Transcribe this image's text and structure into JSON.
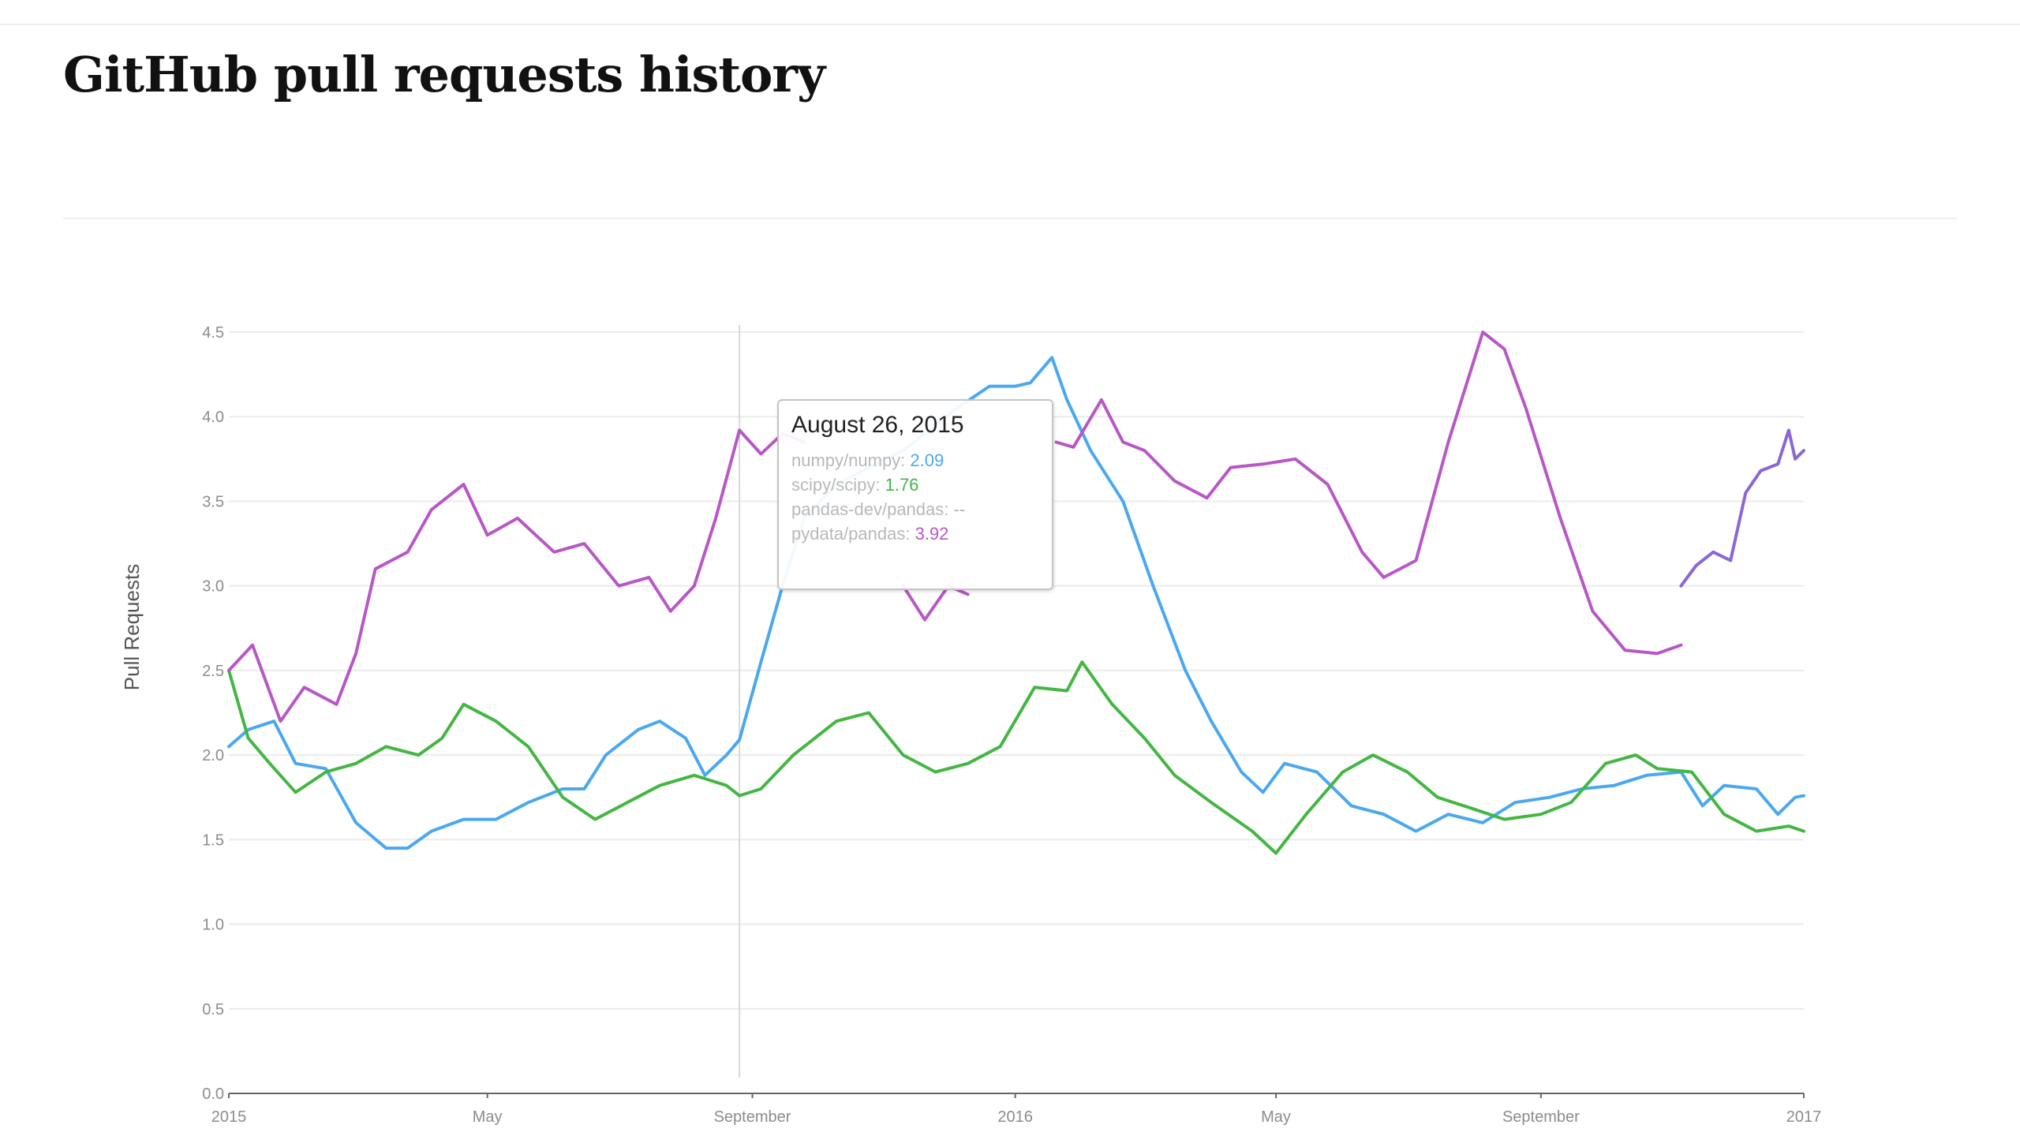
{
  "page": {
    "title": "GitHub pull requests history"
  },
  "tooltip": {
    "date": "August 26, 2015",
    "rows": [
      {
        "label": "numpy/numpy:",
        "value": "2.09",
        "color": "#4aa8f0"
      },
      {
        "label": "scipy/scipy:",
        "value": "1.76",
        "color": "#43b643"
      },
      {
        "label": "pandas-dev/pandas:",
        "value": "--",
        "color": "#b0b0b0"
      },
      {
        "label": "pydata/pandas:",
        "value": "3.92",
        "color": "#b857c6"
      }
    ]
  },
  "chart_data": {
    "type": "line",
    "title": "",
    "xlabel": "",
    "ylabel": "Pull Requests",
    "xlim": [
      "2015-01-01",
      "2017-01-01"
    ],
    "ylim": [
      0,
      4.5
    ],
    "yticks": [
      "0.0",
      "0.5",
      "1.0",
      "1.5",
      "2.0",
      "2.5",
      "3.0",
      "3.5",
      "4.0",
      "4.5"
    ],
    "xticks": [
      {
        "date": "2015-01-01",
        "label": "2015"
      },
      {
        "date": "2015-05-01",
        "label": "May"
      },
      {
        "date": "2015-09-01",
        "label": "September"
      },
      {
        "date": "2016-01-01",
        "label": "2016"
      },
      {
        "date": "2016-05-01",
        "label": "May"
      },
      {
        "date": "2016-09-01",
        "label": "September"
      },
      {
        "date": "2017-01-01",
        "label": "2017"
      }
    ],
    "grid": true,
    "legend": "none",
    "hover_date": "2015-08-26",
    "series": [
      {
        "name": "numpy/numpy",
        "color": "#4aa8f0",
        "points": [
          [
            "2015-01-01",
            2.05
          ],
          [
            "2015-01-10",
            2.15
          ],
          [
            "2015-01-22",
            2.2
          ],
          [
            "2015-02-01",
            1.95
          ],
          [
            "2015-02-15",
            1.92
          ],
          [
            "2015-03-01",
            1.6
          ],
          [
            "2015-03-15",
            1.45
          ],
          [
            "2015-03-25",
            1.45
          ],
          [
            "2015-04-05",
            1.55
          ],
          [
            "2015-04-20",
            1.62
          ],
          [
            "2015-05-05",
            1.62
          ],
          [
            "2015-05-20",
            1.72
          ],
          [
            "2015-06-05",
            1.8
          ],
          [
            "2015-06-15",
            1.8
          ],
          [
            "2015-06-25",
            2.0
          ],
          [
            "2015-07-10",
            2.15
          ],
          [
            "2015-07-20",
            2.2
          ],
          [
            "2015-08-01",
            2.1
          ],
          [
            "2015-08-10",
            1.88
          ],
          [
            "2015-08-20",
            2.0
          ],
          [
            "2015-08-26",
            2.09
          ],
          [
            "2015-09-05",
            2.55
          ],
          [
            "2015-09-15",
            3.0
          ],
          [
            "2015-09-25",
            3.4
          ],
          [
            "2015-10-10",
            3.6
          ],
          [
            "2015-10-25",
            3.7
          ],
          [
            "2015-11-10",
            3.8
          ],
          [
            "2015-11-20",
            3.9
          ],
          [
            "2015-12-05",
            4.05
          ],
          [
            "2015-12-20",
            4.18
          ],
          [
            "2016-01-01",
            4.18
          ],
          [
            "2016-01-08",
            4.2
          ],
          [
            "2016-01-18",
            4.35
          ],
          [
            "2016-01-25",
            4.1
          ],
          [
            "2016-02-05",
            3.8
          ],
          [
            "2016-02-20",
            3.5
          ],
          [
            "2016-03-05",
            3.0
          ],
          [
            "2016-03-20",
            2.5
          ],
          [
            "2016-04-01",
            2.2
          ],
          [
            "2016-04-15",
            1.9
          ],
          [
            "2016-04-25",
            1.78
          ],
          [
            "2016-05-05",
            1.95
          ],
          [
            "2016-05-20",
            1.9
          ],
          [
            "2016-06-05",
            1.7
          ],
          [
            "2016-06-20",
            1.65
          ],
          [
            "2016-07-05",
            1.55
          ],
          [
            "2016-07-20",
            1.65
          ],
          [
            "2016-08-05",
            1.6
          ],
          [
            "2016-08-20",
            1.72
          ],
          [
            "2016-09-05",
            1.75
          ],
          [
            "2016-09-20",
            1.8
          ],
          [
            "2016-10-05",
            1.82
          ],
          [
            "2016-10-20",
            1.88
          ],
          [
            "2016-11-05",
            1.9
          ],
          [
            "2016-11-15",
            1.7
          ],
          [
            "2016-11-25",
            1.82
          ],
          [
            "2016-12-10",
            1.8
          ],
          [
            "2016-12-20",
            1.65
          ],
          [
            "2016-12-28",
            1.75
          ],
          [
            "2017-01-01",
            1.76
          ]
        ]
      },
      {
        "name": "scipy/scipy",
        "color": "#43b643",
        "points": [
          [
            "2015-01-01",
            2.5
          ],
          [
            "2015-01-10",
            2.1
          ],
          [
            "2015-01-20",
            1.95
          ],
          [
            "2015-02-01",
            1.78
          ],
          [
            "2015-02-15",
            1.9
          ],
          [
            "2015-03-01",
            1.95
          ],
          [
            "2015-03-15",
            2.05
          ],
          [
            "2015-03-30",
            2.0
          ],
          [
            "2015-04-10",
            2.1
          ],
          [
            "2015-04-20",
            2.3
          ],
          [
            "2015-05-05",
            2.2
          ],
          [
            "2015-05-20",
            2.05
          ],
          [
            "2015-06-05",
            1.75
          ],
          [
            "2015-06-20",
            1.62
          ],
          [
            "2015-07-05",
            1.72
          ],
          [
            "2015-07-20",
            1.82
          ],
          [
            "2015-08-05",
            1.88
          ],
          [
            "2015-08-20",
            1.82
          ],
          [
            "2015-08-26",
            1.76
          ],
          [
            "2015-09-05",
            1.8
          ],
          [
            "2015-09-20",
            2.0
          ],
          [
            "2015-10-10",
            2.2
          ],
          [
            "2015-10-25",
            2.25
          ],
          [
            "2015-11-10",
            2.0
          ],
          [
            "2015-11-25",
            1.9
          ],
          [
            "2015-12-10",
            1.95
          ],
          [
            "2015-12-25",
            2.05
          ],
          [
            "2016-01-10",
            2.4
          ],
          [
            "2016-01-25",
            2.38
          ],
          [
            "2016-02-01",
            2.55
          ],
          [
            "2016-02-15",
            2.3
          ],
          [
            "2016-03-01",
            2.1
          ],
          [
            "2016-03-15",
            1.88
          ],
          [
            "2016-04-01",
            1.72
          ],
          [
            "2016-04-20",
            1.55
          ],
          [
            "2016-05-01",
            1.42
          ],
          [
            "2016-05-15",
            1.65
          ],
          [
            "2016-06-01",
            1.9
          ],
          [
            "2016-06-15",
            2.0
          ],
          [
            "2016-07-01",
            1.9
          ],
          [
            "2016-07-15",
            1.75
          ],
          [
            "2016-08-01",
            1.68
          ],
          [
            "2016-08-15",
            1.62
          ],
          [
            "2016-09-01",
            1.65
          ],
          [
            "2016-09-15",
            1.72
          ],
          [
            "2016-10-01",
            1.95
          ],
          [
            "2016-10-15",
            2.0
          ],
          [
            "2016-10-25",
            1.92
          ],
          [
            "2016-11-10",
            1.9
          ],
          [
            "2016-11-25",
            1.65
          ],
          [
            "2016-12-10",
            1.55
          ],
          [
            "2016-12-25",
            1.58
          ],
          [
            "2017-01-01",
            1.55
          ]
        ]
      },
      {
        "name": "pydata/pandas",
        "color": "#b857c6",
        "points": [
          [
            "2015-01-01",
            2.5
          ],
          [
            "2015-01-12",
            2.65
          ],
          [
            "2015-01-25",
            2.2
          ],
          [
            "2015-02-05",
            2.4
          ],
          [
            "2015-02-20",
            2.3
          ],
          [
            "2015-03-01",
            2.6
          ],
          [
            "2015-03-10",
            3.1
          ],
          [
            "2015-03-25",
            3.2
          ],
          [
            "2015-04-05",
            3.45
          ],
          [
            "2015-04-20",
            3.6
          ],
          [
            "2015-05-01",
            3.3
          ],
          [
            "2015-05-15",
            3.4
          ],
          [
            "2015-06-01",
            3.2
          ],
          [
            "2015-06-15",
            3.25
          ],
          [
            "2015-07-01",
            3.0
          ],
          [
            "2015-07-15",
            3.05
          ],
          [
            "2015-07-25",
            2.85
          ],
          [
            "2015-08-05",
            3.0
          ],
          [
            "2015-08-15",
            3.4
          ],
          [
            "2015-08-26",
            3.92
          ],
          [
            "2015-09-05",
            3.78
          ],
          [
            "2015-09-15",
            3.9
          ],
          [
            "2015-09-25",
            3.85
          ]
        ]
      },
      {
        "name": "pydata/pandas",
        "color": "#b857c6",
        "points": [
          [
            "2015-11-10",
            3.0
          ],
          [
            "2015-11-20",
            2.8
          ],
          [
            "2015-12-01",
            3.0
          ],
          [
            "2015-12-10",
            2.95
          ]
        ]
      },
      {
        "name": "pydata/pandas",
        "color": "#b857c6",
        "points": [
          [
            "2016-01-20",
            3.85
          ],
          [
            "2016-01-28",
            3.82
          ],
          [
            "2016-02-10",
            4.1
          ],
          [
            "2016-02-20",
            3.85
          ],
          [
            "2016-03-01",
            3.8
          ],
          [
            "2016-03-15",
            3.62
          ],
          [
            "2016-03-30",
            3.52
          ],
          [
            "2016-04-10",
            3.7
          ],
          [
            "2016-04-25",
            3.72
          ],
          [
            "2016-05-10",
            3.75
          ],
          [
            "2016-05-25",
            3.6
          ],
          [
            "2016-06-10",
            3.2
          ],
          [
            "2016-06-20",
            3.05
          ],
          [
            "2016-07-05",
            3.15
          ],
          [
            "2016-07-20",
            3.85
          ],
          [
            "2016-08-05",
            4.5
          ],
          [
            "2016-08-15",
            4.4
          ],
          [
            "2016-08-25",
            4.05
          ],
          [
            "2016-09-10",
            3.4
          ],
          [
            "2016-09-25",
            2.85
          ],
          [
            "2016-10-10",
            2.62
          ],
          [
            "2016-10-25",
            2.6
          ],
          [
            "2016-11-05",
            2.65
          ]
        ]
      },
      {
        "name": "pandas-dev/pandas",
        "color": "#8a66d6",
        "points": [
          [
            "2016-11-05",
            3.0
          ],
          [
            "2016-11-12",
            3.12
          ],
          [
            "2016-11-20",
            3.2
          ],
          [
            "2016-11-28",
            3.15
          ],
          [
            "2016-12-05",
            3.55
          ],
          [
            "2016-12-12",
            3.68
          ],
          [
            "2016-12-20",
            3.72
          ],
          [
            "2016-12-25",
            3.92
          ],
          [
            "2016-12-28",
            3.75
          ],
          [
            "2017-01-01",
            3.8
          ]
        ]
      }
    ]
  }
}
